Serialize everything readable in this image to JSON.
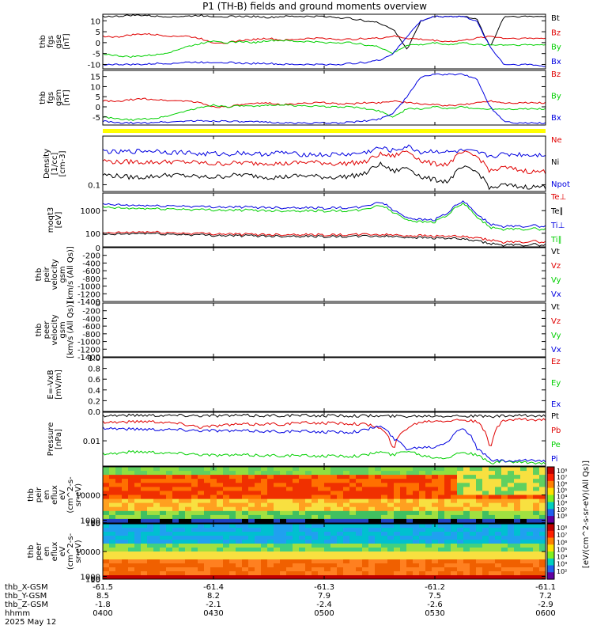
{
  "title": "P1 (TH-B) fields and ground moments overview",
  "colors": {
    "black": "#000000",
    "red": "#e00000",
    "green": "#00d000",
    "blue": "#0000e0",
    "yellow": "#ffff00"
  },
  "chart_data": [
    {
      "id": "fgs_gse",
      "type": "line",
      "ylabel": [
        "thb",
        "fgs",
        "gse",
        "[nT]"
      ],
      "ylim": [
        -12,
        13
      ],
      "ticks": [
        10,
        5,
        0,
        -5,
        -10
      ],
      "series": [
        {
          "name": "Bt",
          "color": "black",
          "values": [
            12,
            12,
            12.5,
            12.5,
            12,
            12,
            12,
            12.5,
            12,
            12,
            12,
            12,
            11.5,
            12,
            12,
            12,
            12,
            11.5,
            11,
            10,
            9,
            6,
            -3,
            10,
            12,
            12,
            12,
            11,
            -2,
            12,
            12,
            12,
            12
          ]
        },
        {
          "name": "Bz",
          "color": "red",
          "values": [
            3,
            2.5,
            3.5,
            4,
            3.5,
            3,
            3,
            2,
            0,
            0,
            1,
            1.5,
            2,
            1,
            1.5,
            2,
            2,
            1.5,
            1.5,
            2,
            2,
            3,
            2,
            1.5,
            1,
            0.5,
            1,
            2,
            3,
            2,
            2,
            2,
            2
          ]
        },
        {
          "name": "By",
          "color": "green",
          "values": [
            -5,
            -6,
            -6.5,
            -6,
            -5.5,
            -4,
            -2,
            -0.5,
            1,
            0,
            0.5,
            0,
            1,
            1,
            0.5,
            0.5,
            0,
            0,
            0,
            -1,
            -2,
            -5,
            -1,
            -1,
            0,
            -1,
            0,
            -1,
            -1,
            -1,
            -1,
            -1,
            -1
          ]
        },
        {
          "name": "Bx",
          "color": "blue",
          "values": [
            -10,
            -10,
            -10,
            -10,
            -9.5,
            -9.5,
            -9,
            -9,
            -9,
            -9,
            -9.5,
            -9.5,
            -9.5,
            -10,
            -10,
            -10,
            -10,
            -10,
            -9.5,
            -9,
            -8,
            -5,
            3,
            10,
            12,
            12,
            12,
            10,
            -2,
            -10,
            -10,
            -10,
            -11
          ]
        }
      ]
    },
    {
      "id": "fgs_gsm",
      "type": "line",
      "ylabel": [
        "thb",
        "fgs",
        "gsm",
        "[nT]"
      ],
      "ylim": [
        -9,
        18
      ],
      "ticks": [
        15,
        10,
        5,
        0,
        -5
      ],
      "series": [
        {
          "name": "Bz",
          "color": "red",
          "values": [
            3,
            2.5,
            3.5,
            4,
            3.5,
            3,
            3,
            2,
            0,
            0,
            1,
            1.5,
            2,
            1,
            1.5,
            2,
            2,
            1.5,
            1.5,
            2,
            2,
            3,
            2,
            1.5,
            1,
            0.5,
            1,
            2,
            3,
            2,
            2,
            2,
            2
          ]
        },
        {
          "name": "By",
          "color": "green",
          "values": [
            -5,
            -6,
            -6.5,
            -6,
            -5.5,
            -4,
            -2,
            -0.5,
            1,
            0,
            0.5,
            0,
            1,
            1,
            0.5,
            0.5,
            0,
            0,
            0,
            -1,
            -2,
            -5,
            -1,
            -1,
            0,
            -1,
            0,
            -1,
            -1,
            -1,
            -1,
            -1,
            -1
          ]
        },
        {
          "name": "Bx",
          "color": "blue",
          "values": [
            -7,
            -8,
            -8,
            -8,
            -7.5,
            -7.5,
            -7,
            -7,
            -7,
            -7,
            -7.5,
            -7.5,
            -7.5,
            -8,
            -8,
            -8,
            -8,
            -8,
            -7.5,
            -7,
            -6,
            -3,
            5,
            15,
            16,
            16,
            16,
            14,
            0,
            -7,
            -8,
            -8,
            -8
          ]
        }
      ]
    },
    {
      "id": "density",
      "type": "line",
      "log": true,
      "ylabel": [
        "Density",
        "[1/cc]",
        "[cm-3]"
      ],
      "ylim": [
        0.07,
        1.3
      ],
      "ticks": [
        {
          "v": 0.1,
          "label": "0.1"
        }
      ],
      "series": [
        {
          "name": "Ne",
          "color": "red",
          "values": [
            0.36,
            0.33,
            0.34,
            0.33,
            0.33,
            0.34,
            0.33,
            0.32,
            0.3,
            0.31,
            0.32,
            0.31,
            0.32,
            0.3,
            0.32,
            0.33,
            0.32,
            0.3,
            0.32,
            0.33,
            0.5,
            0.45,
            0.6,
            0.35,
            0.3,
            0.3,
            0.55,
            0.45,
            0.2,
            0.25,
            0.22,
            0.2,
            0.2
          ]
        },
        {
          "name": "Ni",
          "color": "black",
          "values": [
            0.17,
            0.16,
            0.15,
            0.15,
            0.16,
            0.17,
            0.16,
            0.15,
            0.15,
            0.16,
            0.17,
            0.16,
            0.15,
            0.15,
            0.16,
            0.16,
            0.15,
            0.15,
            0.16,
            0.18,
            0.3,
            0.2,
            0.25,
            0.15,
            0.13,
            0.12,
            0.25,
            0.2,
            0.08,
            0.1,
            0.09,
            0.09,
            0.09
          ]
        },
        {
          "name": "Npot",
          "color": "blue",
          "values": [
            0.6,
            0.55,
            0.58,
            0.6,
            0.6,
            0.55,
            0.56,
            0.5,
            0.52,
            0.5,
            0.55,
            0.5,
            0.52,
            0.55,
            0.5,
            0.5,
            0.48,
            0.5,
            0.5,
            0.55,
            0.7,
            0.6,
            0.75,
            0.55,
            0.6,
            0.55,
            0.6,
            0.55,
            0.45,
            0.5,
            0.5,
            0.48,
            0.5
          ]
        }
      ]
    },
    {
      "id": "temp",
      "type": "line",
      "log": true,
      "ylabel": [
        "moqt3",
        "[eV]"
      ],
      "ylim": [
        25,
        6000
      ],
      "ticks": [
        {
          "v": 1000,
          "label": "1000"
        },
        {
          "v": 100,
          "label": "100"
        }
      ],
      "series": [
        {
          "name": "Te⊥",
          "color": "red",
          "values": [
            100,
            105,
            110,
            115,
            110,
            105,
            100,
            100,
            95,
            95,
            90,
            90,
            88,
            88,
            90,
            88,
            85,
            85,
            85,
            90,
            88,
            85,
            80,
            80,
            75,
            75,
            70,
            60,
            50,
            40,
            40,
            45,
            40
          ]
        },
        {
          "name": "Te∥",
          "color": "black",
          "values": [
            85,
            90,
            95,
            100,
            95,
            90,
            88,
            85,
            82,
            80,
            78,
            78,
            76,
            75,
            76,
            74,
            72,
            72,
            72,
            75,
            75,
            72,
            68,
            65,
            62,
            60,
            55,
            45,
            35,
            30,
            30,
            32,
            30
          ]
        },
        {
          "name": "Ti⊥",
          "color": "blue",
          "values": [
            1900,
            1800,
            1700,
            1700,
            1600,
            1650,
            1600,
            1500,
            1500,
            1450,
            1450,
            1400,
            1400,
            1350,
            1400,
            1350,
            1300,
            1350,
            1300,
            1500,
            2500,
            1000,
            500,
            400,
            400,
            800,
            2500,
            600,
            250,
            200,
            200,
            220,
            200
          ]
        },
        {
          "name": "Ti∥",
          "color": "green",
          "values": [
            1400,
            1300,
            1250,
            1250,
            1200,
            1200,
            1150,
            1100,
            1100,
            1050,
            1050,
            1050,
            1000,
            1000,
            1000,
            1000,
            980,
            980,
            980,
            1100,
            1800,
            800,
            400,
            320,
            320,
            650,
            2000,
            450,
            180,
            150,
            150,
            160,
            150
          ]
        }
      ]
    },
    {
      "id": "peir_vel",
      "type": "line",
      "ylabel": [
        "thb",
        "peir",
        "velocity",
        "gsm",
        "[km/s (All Qs)]"
      ],
      "ylim": [
        -1400,
        0
      ],
      "ticks": [
        0,
        -200,
        -400,
        -600,
        -800,
        -1000,
        -1200,
        -1400
      ],
      "series": [
        {
          "name": "Vt",
          "color": "black"
        },
        {
          "name": "Vz",
          "color": "red"
        },
        {
          "name": "Vy",
          "color": "green"
        },
        {
          "name": "Vx",
          "color": "blue"
        }
      ]
    },
    {
      "id": "peer_vel",
      "type": "line",
      "ylabel": [
        "thb",
        "peer",
        "velocity",
        "gsm",
        "[km/s (All Qs)]"
      ],
      "ylim": [
        -1400,
        0
      ],
      "ticks": [
        0,
        -200,
        -400,
        -600,
        -800,
        -1000,
        -1200,
        -1400
      ],
      "series": [
        {
          "name": "Vt",
          "color": "black"
        },
        {
          "name": "Vz",
          "color": "red"
        },
        {
          "name": "Vy",
          "color": "green"
        },
        {
          "name": "Vx",
          "color": "blue"
        }
      ]
    },
    {
      "id": "efield",
      "type": "line",
      "ylabel": [
        "E=-VxB",
        "[mV/m]"
      ],
      "ylim": [
        0,
        1
      ],
      "ticks": [
        {
          "v": 1,
          "label": "1.0"
        },
        {
          "v": 0.8,
          "label": "0.8"
        },
        {
          "v": 0.6,
          "label": "0.6"
        },
        {
          "v": 0.4,
          "label": "0.4"
        },
        {
          "v": 0.2,
          "label": "0.2"
        },
        {
          "v": 0,
          "label": "0.0"
        }
      ],
      "series": [
        {
          "name": "Ez",
          "color": "red"
        },
        {
          "name": "Ey",
          "color": "green"
        },
        {
          "name": "Ex",
          "color": "blue"
        }
      ]
    },
    {
      "id": "pressure",
      "type": "line",
      "log": true,
      "ylabel": [
        "Pressure",
        "[nPa]"
      ],
      "ylim": [
        0.0012,
        0.11
      ],
      "ticks": [
        {
          "v": 0.01,
          "label": "0.01"
        }
      ],
      "series": [
        {
          "name": "Pt",
          "color": "black",
          "values": [
            0.085,
            0.085,
            0.086,
            0.087,
            0.086,
            0.085,
            0.085,
            0.084,
            0.083,
            0.083,
            0.084,
            0.083,
            0.083,
            0.084,
            0.084,
            0.083,
            0.083,
            0.083,
            0.083,
            0.082,
            0.08,
            0.08,
            0.08,
            0.082,
            0.083,
            0.083,
            0.082,
            0.08,
            0.076,
            0.08,
            0.082,
            0.082,
            0.082
          ]
        },
        {
          "name": "Pb",
          "color": "red",
          "values": [
            0.05,
            0.048,
            0.05,
            0.052,
            0.05,
            0.045,
            0.04,
            0.032,
            0.035,
            0.038,
            0.04,
            0.04,
            0.042,
            0.04,
            0.045,
            0.045,
            0.045,
            0.044,
            0.043,
            0.04,
            0.03,
            0.004,
            0.03,
            0.05,
            0.055,
            0.055,
            0.06,
            0.05,
            0.003,
            0.055,
            0.06,
            0.058,
            0.06
          ]
        },
        {
          "name": "Pe",
          "color": "green",
          "values": [
            0.0035,
            0.0035,
            0.004,
            0.004,
            0.0038,
            0.0035,
            0.0035,
            0.0032,
            0.003,
            0.003,
            0.003,
            0.003,
            0.0029,
            0.0029,
            0.0029,
            0.0028,
            0.0028,
            0.0028,
            0.0028,
            0.003,
            0.004,
            0.003,
            0.0045,
            0.003,
            0.0025,
            0.0025,
            0.004,
            0.003,
            0.0015,
            0.0018,
            0.0016,
            0.0016,
            0.0015
          ]
        },
        {
          "name": "Pi",
          "color": "blue",
          "values": [
            0.03,
            0.028,
            0.027,
            0.027,
            0.026,
            0.026,
            0.025,
            0.024,
            0.024,
            0.023,
            0.023,
            0.023,
            0.022,
            0.022,
            0.022,
            0.022,
            0.021,
            0.021,
            0.021,
            0.025,
            0.035,
            0.012,
            0.005,
            0.006,
            0.006,
            0.01,
            0.03,
            0.005,
            0.002,
            0.0018,
            0.0018,
            0.002,
            0.0018
          ]
        }
      ]
    },
    {
      "id": "peir_spec",
      "type": "heatmap",
      "ylabel": [
        "thb",
        "peir",
        "en",
        "eflux",
        "eV",
        "(cm^2-s-",
        "sr-eV)"
      ],
      "ylim": [
        5,
        20000
      ],
      "ticks": [
        {
          "v": 10000,
          "label": "10000"
        },
        {
          "v": 1000,
          "label": "1000"
        },
        {
          "v": 100,
          "label": "100"
        },
        {
          "v": 10,
          "label": "10"
        }
      ],
      "colorbar": {
        "labels": [
          "10⁸",
          "10⁷",
          "10⁶",
          "10⁵",
          "10⁴",
          "10³",
          "10²",
          "10⁶"
        ]
      }
    },
    {
      "id": "peer_spec",
      "type": "heatmap",
      "ylabel": [
        "thb",
        "peer",
        "en",
        "eflux",
        "eV",
        "(cm^2-s-",
        "sr-eV)"
      ],
      "ylim": [
        5,
        20000
      ],
      "ticks": [
        {
          "v": 10000,
          "label": "10000"
        },
        {
          "v": 1000,
          "label": "1000"
        },
        {
          "v": 100,
          "label": "100"
        },
        {
          "v": 10,
          "label": "10"
        }
      ],
      "colorbar": {
        "labels": [
          "10⁸",
          "10⁷",
          "10⁶",
          "10⁵",
          "10⁴",
          "10³",
          "10²"
        ]
      }
    }
  ],
  "colorbar_title": "[eV/(cm^2-s-sr-eV)(All Qs)]",
  "x_axis": {
    "labels": [
      "thb_X-GSM",
      "thb_Y-GSM",
      "thb_Z-GSM",
      "hhmm",
      "2025 May 12"
    ],
    "rows": [
      [
        "-61.5",
        "-61.4",
        "-61.3",
        "-61.2",
        "-61.1"
      ],
      [
        "8.5",
        "8.2",
        "7.9",
        "7.5",
        "7.2"
      ],
      [
        "-1.8",
        "-2.1",
        "-2.4",
        "-2.6",
        "-2.9"
      ],
      [
        "0400",
        "0430",
        "0500",
        "0530",
        "0600"
      ]
    ]
  }
}
